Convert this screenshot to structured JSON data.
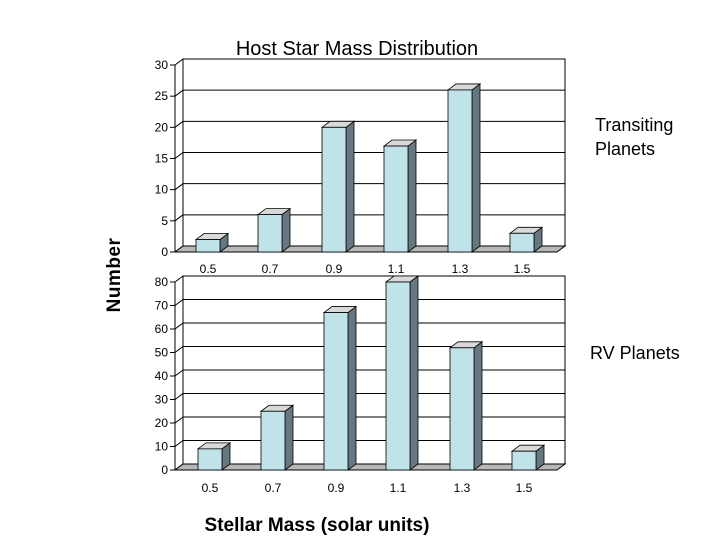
{
  "figure": {
    "title": "Host Star Mass Distribution",
    "ylabel": "Number",
    "xlabel": "Stellar Mass (solar units)"
  },
  "colors": {
    "bar_front": "#bfe3e8",
    "bar_side": "#66777f",
    "bar_top": "#d9d9d9",
    "floor": "#b8b8b8",
    "wall": "#ffffff",
    "gridline": "#000000"
  },
  "chart_data": [
    {
      "type": "bar",
      "panel_label": "Transiting Planets",
      "categories": [
        "0.5",
        "0.7",
        "0.9",
        "1.1",
        "1.3",
        "1.5"
      ],
      "values": [
        2,
        6,
        20,
        17,
        26,
        3
      ],
      "ylim": [
        0,
        30
      ],
      "yticks": [
        0,
        5,
        10,
        15,
        20,
        25,
        30
      ],
      "grid": true
    },
    {
      "type": "bar",
      "panel_label": "RV Planets",
      "categories": [
        "0.5",
        "0.7",
        "0.9",
        "1.1",
        "1.3",
        "1.5"
      ],
      "values": [
        9,
        25,
        67,
        80,
        52,
        8
      ],
      "ylim": [
        0,
        80
      ],
      "yticks": [
        0,
        10,
        20,
        30,
        40,
        50,
        60,
        70,
        80
      ],
      "grid": true
    }
  ]
}
